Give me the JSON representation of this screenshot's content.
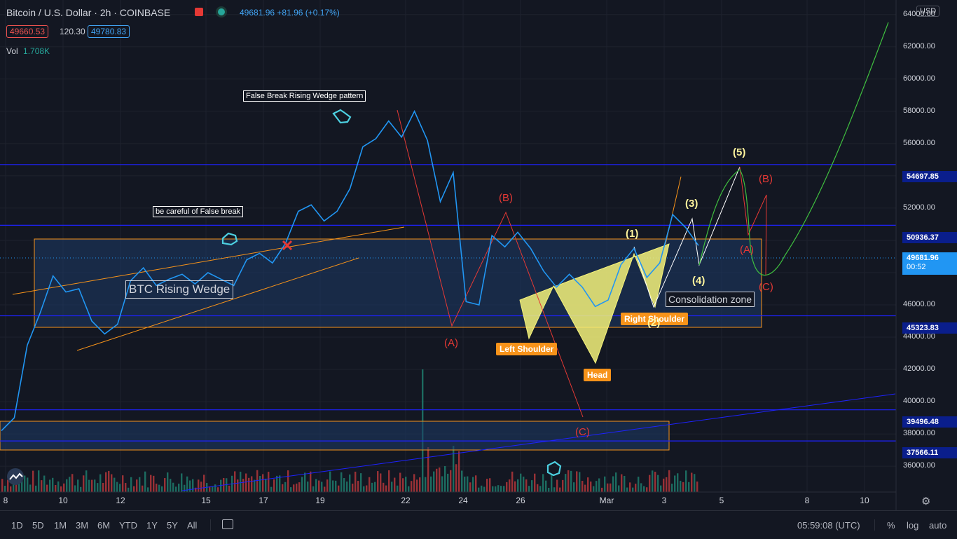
{
  "header": {
    "symbol": "Bitcoin / U.S. Dollar",
    "interval": "2h",
    "exchange": "COINBASE",
    "last_price": "49681.96",
    "change": "+81.96 (+0.17%)",
    "bid": "49660.53",
    "spread": "120.30",
    "ask": "49780.83",
    "vol_label": "Vol",
    "vol_value": "1.708K",
    "currency": "USD"
  },
  "price_tags": {
    "t1": "54697.85",
    "t2": "50936.37",
    "t3": "49681.96",
    "t3_timer": "00:52",
    "t4": "45323.83",
    "t5": "39496.48",
    "t6": "37566.11"
  },
  "annotations": {
    "false_break_pattern": "False Break Rising Wedge pattern",
    "be_careful": "be careful of False break",
    "btc_wedge": "BTC Rising Wedge",
    "consolidation": "Consolidation zone",
    "left_shoulder": "Left Shoulder",
    "head": "Head",
    "right_shoulder": "Right Shoulder",
    "wave_a1": "(A)",
    "wave_b1": "(B)",
    "wave_c1": "(C)",
    "wave_1": "(1)",
    "wave_2": "(2)",
    "wave_3": "(3)",
    "wave_4": "(4)",
    "wave_5": "(5)",
    "wave_a2": "(A)",
    "wave_b2": "(B)",
    "wave_c2": "(C)"
  },
  "bottom_bar": {
    "timeframes": [
      "1D",
      "5D",
      "1M",
      "3M",
      "6M",
      "YTD",
      "1Y",
      "5Y",
      "All"
    ],
    "time": "05:59:08 (UTC)",
    "percent": "%",
    "log": "log",
    "auto": "auto"
  },
  "colors": {
    "background": "#131722",
    "price_line": "#2196f3",
    "zone_fill": "#1e3a66",
    "zone_border": "#f7931a",
    "level_line": "#1e22ff",
    "wave_red": "#e53935",
    "projection_green": "#4caf50",
    "hs_yellow": "#f5f27a",
    "label_orange": "#f7931a",
    "wave_yellow": "#fff59d",
    "volume_red": "#b2363a",
    "volume_green": "#1f7a6b"
  },
  "chart_data": {
    "type": "line",
    "title": "Bitcoin / U.S. Dollar · 2h · COINBASE",
    "y_ticks": [
      36000,
      38000,
      40000,
      42000,
      44000,
      46000,
      48000,
      50000,
      52000,
      54000,
      56000,
      58000,
      60000,
      62000,
      64000
    ],
    "y_tick_labels": [
      "36000.00",
      "38000.00",
      "40000.00",
      "42000.00",
      "44000.00",
      "46000.00",
      "48000.00",
      "50000.00",
      "52000.00",
      "54000.00",
      "56000.00",
      "58000.00",
      "60000.00",
      "62000.00",
      "64000.00"
    ],
    "ylim": [
      34400,
      64900
    ],
    "x_ticks": [
      "8",
      "10",
      "12",
      "15",
      "17",
      "19",
      "22",
      "24",
      "26",
      "Mar",
      "3",
      "5",
      "8",
      "10"
    ],
    "series": [
      {
        "x": [
          "Feb 8",
          "Feb 8",
          "Feb 8",
          "Feb 9",
          "Feb 9",
          "Feb 9",
          "Feb 10",
          "Feb 10",
          "Feb 11",
          "Feb 11",
          "Feb 11",
          "Feb 12",
          "Feb 12",
          "Feb 13",
          "Feb 13",
          "Feb 14",
          "Feb 14",
          "Feb 15",
          "Feb 15",
          "Feb 16",
          "Feb 16",
          "Feb 17",
          "Feb 17",
          "Feb 17",
          "Feb 18",
          "Feb 18",
          "Feb 19",
          "Feb 19",
          "Feb 20",
          "Feb 20",
          "Feb 21",
          "Feb 21",
          "Feb 21",
          "Feb 22",
          "Feb 22",
          "Feb 22",
          "Feb 23",
          "Feb 23",
          "Feb 24",
          "Feb 24",
          "Feb 25",
          "Feb 25",
          "Feb 26",
          "Feb 26",
          "Feb 27",
          "Feb 27",
          "Feb 28",
          "Feb 28",
          "Mar 1",
          "Mar 1",
          "Mar 2",
          "Mar 2",
          "Mar 3",
          "Mar 3",
          "Mar 4"
        ],
        "values": [
          38200,
          39000,
          43500,
          45500,
          47800,
          46800,
          47000,
          45000,
          44200,
          44800,
          47500,
          48300,
          47200,
          47600,
          47900,
          47300,
          48000,
          47600,
          47200,
          48800,
          49200,
          48600,
          49800,
          51800,
          52200,
          51200,
          51800,
          53200,
          55800,
          56300,
          57400,
          56400,
          58000,
          56200,
          52400,
          54200,
          46200,
          46000,
          50300,
          49600,
          50500,
          49500,
          48100,
          47100,
          47900,
          47100,
          45900,
          46300,
          48500,
          49500,
          47700,
          48600,
          51600,
          50800,
          49680
        ]
      }
    ],
    "levels": [
      54697.85,
      50936.37,
      49681.96,
      45323.83,
      39496.48,
      37566.11
    ],
    "xlabel": "",
    "ylabel": "",
    "grid": true,
    "legend": "none"
  }
}
